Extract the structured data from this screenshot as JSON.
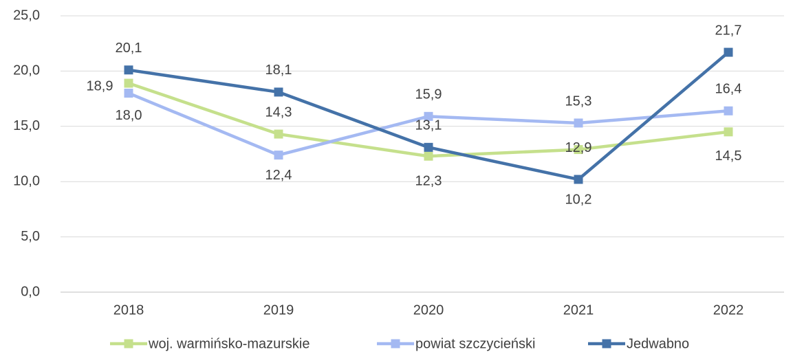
{
  "chart_data": {
    "type": "line",
    "categories": [
      "2018",
      "2019",
      "2020",
      "2021",
      "2022"
    ],
    "series": [
      {
        "name": "woj. warmińsko-mazurskie",
        "color": "#c5e08c",
        "values": [
          18.9,
          14.3,
          12.3,
          12.9,
          14.5
        ],
        "value_labels": [
          "18,9",
          "14,3",
          "12,3",
          "12,9",
          "14,5"
        ]
      },
      {
        "name": "powiat szczycieński",
        "color": "#a4b9f2",
        "values": [
          18.0,
          12.4,
          15.9,
          15.3,
          16.4
        ],
        "value_labels": [
          "18,0",
          "12,4",
          "15,9",
          "15,3",
          "16,4"
        ]
      },
      {
        "name": "Jedwabno",
        "color": "#4472a8",
        "values": [
          20.1,
          18.1,
          13.1,
          10.2,
          21.7
        ],
        "value_labels": [
          "20,1",
          "18,1",
          "13,1",
          "10,2",
          "21,7"
        ]
      }
    ],
    "ylim": [
      0,
      25
    ],
    "yticks": [
      {
        "value": 0,
        "label": "0,0"
      },
      {
        "value": 5,
        "label": "5,0"
      },
      {
        "value": 10,
        "label": "10,0"
      },
      {
        "value": 15,
        "label": "15,0"
      },
      {
        "value": 20,
        "label": "20,0"
      },
      {
        "value": 25,
        "label": "25,0"
      }
    ],
    "grid": true,
    "legend": "bottom"
  }
}
